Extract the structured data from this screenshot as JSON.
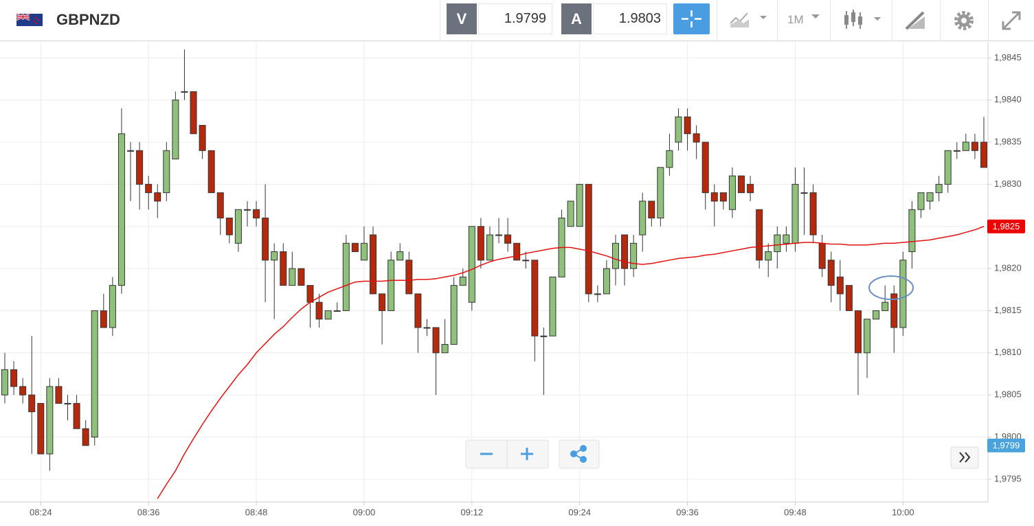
{
  "header": {
    "symbol": "GBPNZD",
    "bid_label": "V",
    "bid": "1.9799",
    "ask_label": "A",
    "ask": "1.9803",
    "timeframe": "1M"
  },
  "chart_data": {
    "type": "candlestick",
    "categories": [
      null,
      null,
      null,
      null,
      "08:24",
      null,
      null,
      null,
      null,
      null,
      null,
      null,
      null,
      null,
      null,
      null,
      "08:36",
      null,
      null,
      null,
      null,
      null,
      null,
      null,
      null,
      null,
      null,
      null,
      "08:48",
      null,
      null,
      null,
      null,
      null,
      null,
      null,
      null,
      null,
      null,
      null,
      "09:00",
      null,
      null,
      null,
      null,
      null,
      null,
      null,
      null,
      null,
      null,
      null,
      "09:12",
      null,
      null,
      null,
      null,
      null,
      null,
      null,
      null,
      null,
      null,
      null,
      "09:24",
      null,
      null,
      null,
      null,
      null,
      null,
      null,
      null,
      null,
      null,
      null,
      "09:36",
      null,
      null,
      null,
      null,
      null,
      null,
      null,
      null,
      null,
      null,
      null,
      "09:48",
      null,
      null,
      null,
      null,
      null,
      null,
      null,
      null,
      null,
      null,
      null,
      "10:00",
      null,
      null,
      null,
      null,
      null,
      null,
      null,
      null,
      null
    ],
    "open": [
      1.9805,
      1.9808,
      1.9806,
      1.9805,
      1.9804,
      1.9798,
      1.9806,
      1.9804,
      1.9804,
      1.9801,
      1.98,
      1.9815,
      1.9813,
      1.9818,
      1.9834,
      1.9834,
      1.983,
      1.9829,
      1.9829,
      1.9833,
      1.9841,
      1.9841,
      1.9837,
      1.9834,
      1.9829,
      1.9826,
      1.9823,
      1.9827,
      1.9827,
      1.9826,
      1.9821,
      1.9822,
      1.9818,
      1.982,
      1.9818,
      1.9816,
      1.9814,
      1.9815,
      1.9815,
      1.9823,
      1.9821,
      1.9824,
      1.9817,
      1.9815,
      1.9821,
      1.9821,
      1.9817,
      1.9813,
      1.9813,
      1.981,
      1.9811,
      1.9818,
      1.9816,
      1.9825,
      1.9821,
      1.9824,
      1.9824,
      1.9823,
      1.9821,
      1.9821,
      1.9812,
      1.9812,
      1.9819,
      1.9825,
      1.9825,
      1.983,
      1.9817,
      1.9817,
      1.982,
      1.9824,
      1.982,
      1.9824,
      1.9828,
      1.9826,
      1.9832,
      1.9835,
      1.9838,
      1.9836,
      1.9835,
      1.9829,
      1.9829,
      1.9827,
      1.9831,
      1.983,
      1.9827,
      1.9821,
      1.9822,
      1.9823,
      1.9823,
      1.9829,
      1.9829,
      1.9823,
      1.9821,
      1.9819,
      1.9818,
      1.9815,
      1.981,
      1.9814,
      1.9815,
      1.9817,
      1.9813,
      1.9822,
      1.9827,
      1.9828,
      1.9829,
      1.983,
      1.9834,
      1.9834,
      1.9835,
      1.9835
    ],
    "high": [
      1.981,
      1.9809,
      1.9807,
      1.9812,
      1.9804,
      1.9807,
      1.9807,
      1.9805,
      1.9805,
      1.9802,
      1.9815,
      1.9817,
      1.9819,
      1.9839,
      1.9835,
      1.9835,
      1.9831,
      1.983,
      1.9835,
      1.9841,
      1.9846,
      1.9841,
      1.9837,
      1.9834,
      1.9829,
      1.9826,
      1.9827,
      1.9828,
      1.9828,
      1.983,
      1.9823,
      1.9823,
      1.9822,
      1.982,
      1.9818,
      1.9817,
      1.9815,
      1.9816,
      1.9824,
      1.9823,
      1.9825,
      1.9825,
      1.9817,
      1.9822,
      1.9823,
      1.9822,
      1.9817,
      1.9814,
      1.9813,
      1.9814,
      1.9819,
      1.982,
      1.9825,
      1.9826,
      1.9825,
      1.9826,
      1.9826,
      1.9823,
      1.9822,
      1.9821,
      1.9813,
      1.9819,
      1.9827,
      1.9828,
      1.983,
      1.983,
      1.9818,
      1.9821,
      1.9824,
      1.9824,
      1.9824,
      1.9829,
      1.9828,
      1.9832,
      1.9836,
      1.9839,
      1.9839,
      1.9837,
      1.9835,
      1.983,
      1.9829,
      1.9832,
      1.9831,
      1.9831,
      1.9827,
      1.9823,
      1.9825,
      1.9825,
      1.9832,
      1.9832,
      1.983,
      1.9824,
      1.9822,
      1.9821,
      1.9818,
      1.9815,
      1.9814,
      1.9815,
      1.9818,
      1.9818,
      1.9822,
      1.9828,
      1.9829,
      1.9829,
      1.9831,
      1.9834,
      1.9835,
      1.9836,
      1.9836,
      1.9838
    ],
    "low": [
      1.9804,
      1.9805,
      1.9804,
      1.9798,
      1.9798,
      1.9796,
      1.9804,
      1.9802,
      1.9801,
      1.9799,
      1.9799,
      1.9813,
      1.9812,
      1.9817,
      1.9828,
      1.9827,
      1.9827,
      1.9826,
      1.9828,
      1.9833,
      1.984,
      1.9836,
      1.9833,
      1.9829,
      1.9824,
      1.9823,
      1.9822,
      1.9825,
      1.9825,
      1.9816,
      1.9814,
      1.9818,
      1.9818,
      1.9818,
      1.9813,
      1.9813,
      1.9814,
      1.9815,
      1.9815,
      1.9822,
      1.9821,
      1.9817,
      1.9811,
      1.9815,
      1.9821,
      1.9817,
      1.981,
      1.9812,
      1.9805,
      1.981,
      1.9811,
      1.9818,
      1.9815,
      1.982,
      1.9821,
      1.9823,
      1.9822,
      1.9821,
      1.982,
      1.9809,
      1.9805,
      1.9812,
      1.9819,
      1.9825,
      1.9825,
      1.9816,
      1.9816,
      1.9817,
      1.9818,
      1.9818,
      1.9819,
      1.9822,
      1.9825,
      1.9825,
      1.9831,
      1.9834,
      1.9834,
      1.9833,
      1.9827,
      1.9825,
      1.9827,
      1.9826,
      1.9829,
      1.9828,
      1.982,
      1.9819,
      1.982,
      1.9822,
      1.9822,
      1.9824,
      1.9823,
      1.9819,
      1.9816,
      1.9815,
      1.9815,
      1.9805,
      1.9807,
      1.9814,
      1.9815,
      1.981,
      1.9812,
      1.982,
      1.9826,
      1.9827,
      1.9828,
      1.9829,
      1.9833,
      1.9834,
      1.9833,
      1.9832
    ],
    "close": [
      1.9808,
      1.9806,
      1.9805,
      1.9803,
      1.9798,
      1.9806,
      1.9804,
      1.9804,
      1.9801,
      1.9799,
      1.9815,
      1.9813,
      1.9818,
      1.9836,
      1.9834,
      1.983,
      1.9829,
      1.9828,
      1.9834,
      1.984,
      1.9841,
      1.9836,
      1.9834,
      1.9829,
      1.9826,
      1.9824,
      1.9827,
      1.9827,
      1.9826,
      1.9821,
      1.9822,
      1.9818,
      1.982,
      1.9818,
      1.9816,
      1.9814,
      1.9815,
      1.9815,
      1.9823,
      1.9822,
      1.9823,
      1.9817,
      1.9815,
      1.9821,
      1.9822,
      1.9817,
      1.9813,
      1.9813,
      1.981,
      1.9811,
      1.9818,
      1.9819,
      1.9825,
      1.9821,
      1.9824,
      1.9824,
      1.9823,
      1.9821,
      1.9821,
      1.9812,
      1.9812,
      1.9819,
      1.9826,
      1.9828,
      1.983,
      1.9817,
      1.9817,
      1.982,
      1.9823,
      1.982,
      1.9823,
      1.9828,
      1.9826,
      1.9832,
      1.9834,
      1.9838,
      1.9836,
      1.9835,
      1.9829,
      1.9828,
      1.9828,
      1.9831,
      1.9829,
      1.9829,
      1.9821,
      1.9822,
      1.9824,
      1.9824,
      1.983,
      1.9829,
      1.9824,
      1.982,
      1.9818,
      1.9817,
      1.9815,
      1.981,
      1.9814,
      1.9815,
      1.9816,
      1.9813,
      1.9821,
      1.9827,
      1.9829,
      1.9829,
      1.983,
      1.9834,
      1.9834,
      1.9835,
      1.9834,
      1.9832
    ],
    "up_color": "#8fc17c",
    "down_color": "#b5290d",
    "moving_average": {
      "color": "#e01010",
      "values": [
        null,
        null,
        null,
        null,
        null,
        null,
        null,
        null,
        null,
        null,
        null,
        null,
        null,
        null,
        null,
        null,
        null,
        1.97927,
        1.97944,
        1.9796,
        1.9798,
        1.97998,
        1.98015,
        1.98031,
        1.98046,
        1.9806,
        1.98074,
        1.98086,
        1.981,
        1.98111,
        1.98122,
        1.98131,
        1.98142,
        1.98152,
        1.9816,
        1.98166,
        1.98172,
        1.98176,
        1.9818,
        1.98184,
        1.98185,
        1.98185,
        1.98185,
        1.98186,
        1.98186,
        1.98186,
        1.98187,
        1.98187,
        1.98188,
        1.9819,
        1.98192,
        1.98195,
        1.98199,
        1.98204,
        1.98208,
        1.98211,
        1.98213,
        1.98215,
        1.98218,
        1.9822,
        1.98222,
        1.98224,
        1.98225,
        1.98225,
        1.98223,
        1.98221,
        1.98218,
        1.98215,
        1.98211,
        1.98208,
        1.98206,
        1.98205,
        1.98206,
        1.98208,
        1.9821,
        1.98212,
        1.98213,
        1.98214,
        1.98216,
        1.98217,
        1.98219,
        1.98221,
        1.98223,
        1.98225,
        1.98226,
        1.98227,
        1.98228,
        1.98229,
        1.9823,
        1.98231,
        1.98231,
        1.9823,
        1.98229,
        1.98229,
        1.98228,
        1.98228,
        1.98228,
        1.98229,
        1.9823,
        1.9823,
        1.98231,
        1.98232,
        1.98233,
        1.98234,
        1.98236,
        1.98238,
        1.9824,
        1.98243,
        1.98246,
        1.9825
      ]
    },
    "ylim": [
      1.97923,
      1.98469
    ],
    "yticks": [
      {
        "value": 1.9795,
        "label": "1,9795"
      },
      {
        "value": 1.98,
        "label": "1,9800"
      },
      {
        "value": 1.9805,
        "label": "1,9805"
      },
      {
        "value": 1.981,
        "label": "1,9810"
      },
      {
        "value": 1.9815,
        "label": "1,9815"
      },
      {
        "value": 1.982,
        "label": "1,9820"
      },
      {
        "value": 1.9825,
        "label": "1,9825"
      },
      {
        "value": 1.983,
        "label": "1,9830"
      },
      {
        "value": 1.9835,
        "label": "1,9835"
      },
      {
        "value": 1.984,
        "label": "1,9840"
      },
      {
        "value": 1.9845,
        "label": "1,9845"
      }
    ],
    "grid": true,
    "price_tags": [
      {
        "value": 1.9825,
        "label": "1,9825",
        "color": "#ee0000"
      },
      {
        "value": 1.9799,
        "label": "1,9799",
        "color": "#4aa3dc"
      }
    ]
  }
}
